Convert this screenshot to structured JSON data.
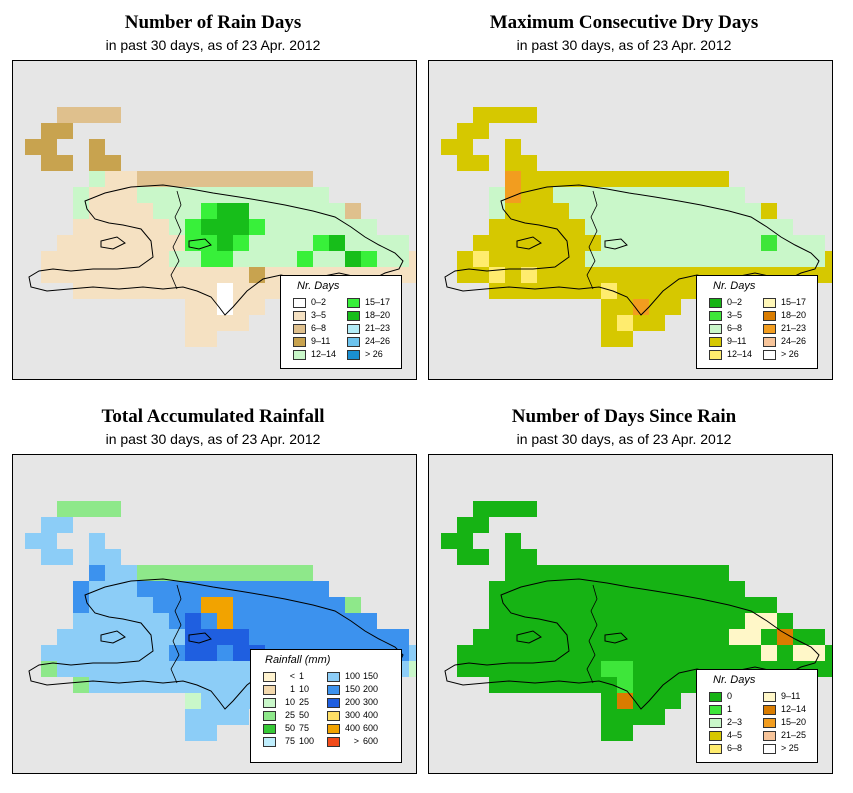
{
  "panels": [
    {
      "title": "Number of Rain Days",
      "subtitle": "in past 30 days, as of  23 Apr. 2012",
      "legend": {
        "title": "Nr. Days",
        "items": [
          {
            "label": "0–2",
            "color": "#ffffff"
          },
          {
            "label": "3–5",
            "color": "#f5e1c2"
          },
          {
            "label": "6–8",
            "color": "#dfc08d"
          },
          {
            "label": "9–11",
            "color": "#c8a34f"
          },
          {
            "label": "12–14",
            "color": "#c9f7c9"
          },
          {
            "label": "15–17",
            "color": "#38f03a"
          },
          {
            "label": "18–20",
            "color": "#17be1a"
          },
          {
            "label": "21–23",
            "color": "#b3ecf7"
          },
          {
            "label": "24–26",
            "color": "#6cc3ee"
          },
          {
            "label": "> 26",
            "color": "#1a8fd1"
          }
        ]
      }
    },
    {
      "title": "Maximum Consecutive Dry Days",
      "subtitle": "in past 30 days, as of  23 Apr. 2012",
      "legend": {
        "title": "Nr. Days",
        "items": [
          {
            "label": "0–2",
            "color": "#16b314"
          },
          {
            "label": "3–5",
            "color": "#3ee63a"
          },
          {
            "label": "6–8",
            "color": "#c9f7c9"
          },
          {
            "label": "9–11",
            "color": "#d6c800"
          },
          {
            "label": "12–14",
            "color": "#ffec6e"
          },
          {
            "label": "15–17",
            "color": "#fff7b8"
          },
          {
            "label": "18–20",
            "color": "#d97c00"
          },
          {
            "label": "21–23",
            "color": "#f29d1f"
          },
          {
            "label": "24–26",
            "color": "#f7c49a"
          },
          {
            "label": "> 26",
            "color": "#ffffff"
          }
        ]
      }
    },
    {
      "title": "Total Accumulated Rainfall",
      "subtitle": "in past 30 days, as of  23 Apr. 2012",
      "legend": {
        "title": "Rainfall (mm)",
        "items": [
          {
            "lo": "",
            "sep": "<",
            "hi": "1",
            "color": "#fff3cf"
          },
          {
            "lo": "1",
            "sep": "",
            "hi": "10",
            "color": "#f3d9ae"
          },
          {
            "lo": "10",
            "sep": "",
            "hi": "25",
            "color": "#c9f7c9"
          },
          {
            "lo": "25",
            "sep": "",
            "hi": "50",
            "color": "#8ee88a"
          },
          {
            "lo": "50",
            "sep": "",
            "hi": "75",
            "color": "#36c836"
          },
          {
            "lo": "75",
            "sep": "",
            "hi": "100",
            "color": "#bfeefd"
          },
          {
            "lo": "100",
            "sep": "",
            "hi": "150",
            "color": "#8ccdf7"
          },
          {
            "lo": "150",
            "sep": "",
            "hi": "200",
            "color": "#3c92ee"
          },
          {
            "lo": "200",
            "sep": "",
            "hi": "300",
            "color": "#1f5fe0"
          },
          {
            "lo": "300",
            "sep": "",
            "hi": "400",
            "color": "#ffe066"
          },
          {
            "lo": "400",
            "sep": "",
            "hi": "600",
            "color": "#f2a300"
          },
          {
            "lo": "",
            "sep": ">",
            "hi": "600",
            "color": "#f24b1a"
          }
        ]
      }
    },
    {
      "title": "Number of Days Since Rain",
      "subtitle": "in past 30 days, as of  23 Apr. 2012",
      "legend": {
        "title": "Nr. Days",
        "items": [
          {
            "label": "0",
            "color": "#16b314"
          },
          {
            "label": "1",
            "color": "#3ee63a"
          },
          {
            "label": "2–3",
            "color": "#c9f7c9"
          },
          {
            "label": "4–5",
            "color": "#d6c800"
          },
          {
            "label": "6–8",
            "color": "#ffec6e"
          },
          {
            "label": "9–11",
            "color": "#fff7c8"
          },
          {
            "label": "12–14",
            "color": "#d97c00"
          },
          {
            "label": "15–20",
            "color": "#f29d1f"
          },
          {
            "label": "21–25",
            "color": "#f7c49a"
          },
          {
            "label": "> 25",
            "color": "#ffffff"
          }
        ]
      }
    }
  ],
  "maps": {
    "grid_rows": [
      "..HHHH..................",
      ".EE.....................",
      "EE..E...................",
      ".EE.EE..................",
      "....ISSHHHHHHHHHHH......",
      "...ISSSIIIIIIIIIIII......",
      "...ISSSSIIIIIIIIIIIIH....",
      "...SSSSSSIIIIIIIIIIIII...",
      "..SSSSSSSSIIIIIIIIIIIIII.",
      ".SSSSSSSSIIIIIIIIIIIIIIIS",
      ".SSSSSSSSSSSSSSSSSSSSSSSS",
      "...SSSSSSSSSSSSSSSSSSSS..",
      "..........SSSSS..........",
      "..........SSSS...........",
      "..........SS............."
    ],
    "codes": {
      "rain_days": {
        "E": "#c8a34f",
        "H": "#dfc08d",
        "I": "#c9f7c9",
        "S": "#f5e1c2",
        "X": "#38f03a",
        "Y": "#17be1a",
        "W": "#ffffff"
      },
      "dry_days": {
        "E": "#d6c800",
        "H": "#d6c800",
        "I": "#c9f7c9",
        "S": "#d6c800",
        "X": "#ffec6e",
        "Y": "#3ee63a",
        "W": "#f29d1f"
      },
      "rainfall": {
        "E": "#8ccdf7",
        "H": "#8ee88a",
        "I": "#3c92ee",
        "S": "#8ccdf7",
        "X": "#1f5fe0",
        "Y": "#f2a300",
        "W": "#c9f7c9"
      },
      "since_rain": {
        "E": "#16b314",
        "H": "#16b314",
        "I": "#16b314",
        "S": "#16b314",
        "X": "#fff7c8",
        "Y": "#3ee63a",
        "W": "#d97c00"
      }
    },
    "overrides": {
      "rain_days": [
        {
          "r": 6,
          "c": 11,
          "v": "X"
        },
        {
          "r": 6,
          "c": 12,
          "v": "Y"
        },
        {
          "r": 6,
          "c": 13,
          "v": "Y"
        },
        {
          "r": 7,
          "c": 10,
          "v": "X"
        },
        {
          "r": 7,
          "c": 11,
          "v": "Y"
        },
        {
          "r": 7,
          "c": 12,
          "v": "Y"
        },
        {
          "r": 7,
          "c": 13,
          "v": "Y"
        },
        {
          "r": 7,
          "c": 14,
          "v": "X"
        },
        {
          "r": 8,
          "c": 10,
          "v": "X"
        },
        {
          "r": 8,
          "c": 11,
          "v": "X"
        },
        {
          "r": 8,
          "c": 12,
          "v": "Y"
        },
        {
          "r": 8,
          "c": 13,
          "v": "X"
        },
        {
          "r": 8,
          "c": 18,
          "v": "X"
        },
        {
          "r": 8,
          "c": 19,
          "v": "Y"
        },
        {
          "r": 9,
          "c": 11,
          "v": "X"
        },
        {
          "r": 9,
          "c": 12,
          "v": "X"
        },
        {
          "r": 9,
          "c": 17,
          "v": "X"
        },
        {
          "r": 9,
          "c": 20,
          "v": "Y"
        },
        {
          "r": 9,
          "c": 21,
          "v": "X"
        },
        {
          "r": 10,
          "c": 14,
          "v": "E"
        },
        {
          "r": 11,
          "c": 12,
          "v": "W"
        },
        {
          "r": 12,
          "c": 12,
          "v": "W"
        }
      ],
      "dry_days": [
        {
          "r": 4,
          "c": 4,
          "v": "W"
        },
        {
          "r": 5,
          "c": 4,
          "v": "W"
        },
        {
          "r": 9,
          "c": 2,
          "v": "X"
        },
        {
          "r": 10,
          "c": 3,
          "v": "X"
        },
        {
          "r": 10,
          "c": 5,
          "v": "X"
        },
        {
          "r": 11,
          "c": 10,
          "v": "X"
        },
        {
          "r": 12,
          "c": 12,
          "v": "W"
        },
        {
          "r": 13,
          "c": 11,
          "v": "X"
        },
        {
          "r": 8,
          "c": 20,
          "v": "Y"
        },
        {
          "r": 8,
          "c": 21,
          "v": "I"
        }
      ],
      "rainfall": [
        {
          "r": 6,
          "c": 11,
          "v": "Y"
        },
        {
          "r": 6,
          "c": 12,
          "v": "Y"
        },
        {
          "r": 7,
          "c": 12,
          "v": "Y"
        },
        {
          "r": 7,
          "c": 10,
          "v": "X"
        },
        {
          "r": 8,
          "c": 10,
          "v": "X"
        },
        {
          "r": 8,
          "c": 11,
          "v": "X"
        },
        {
          "r": 8,
          "c": 12,
          "v": "X"
        },
        {
          "r": 8,
          "c": 13,
          "v": "X"
        },
        {
          "r": 9,
          "c": 10,
          "v": "X"
        },
        {
          "r": 9,
          "c": 11,
          "v": "X"
        },
        {
          "r": 9,
          "c": 13,
          "v": "X"
        },
        {
          "r": 9,
          "c": 14,
          "v": "X"
        },
        {
          "r": 10,
          "c": 1,
          "v": "H"
        },
        {
          "r": 10,
          "c": 24,
          "v": "W"
        },
        {
          "r": 11,
          "c": 3,
          "v": "H"
        },
        {
          "r": 12,
          "c": 10,
          "v": "W"
        }
      ],
      "since_rain": [
        {
          "r": 7,
          "c": 19,
          "v": "X"
        },
        {
          "r": 7,
          "c": 20,
          "v": "X"
        },
        {
          "r": 8,
          "c": 18,
          "v": "X"
        },
        {
          "r": 8,
          "c": 19,
          "v": "X"
        },
        {
          "r": 8,
          "c": 21,
          "v": "W"
        },
        {
          "r": 9,
          "c": 20,
          "v": "X"
        },
        {
          "r": 9,
          "c": 22,
          "v": "X"
        },
        {
          "r": 9,
          "c": 23,
          "v": "X"
        },
        {
          "r": 10,
          "c": 10,
          "v": "Y"
        },
        {
          "r": 10,
          "c": 11,
          "v": "Y"
        },
        {
          "r": 11,
          "c": 11,
          "v": "Y"
        },
        {
          "r": 12,
          "c": 11,
          "v": "W"
        }
      ]
    }
  }
}
